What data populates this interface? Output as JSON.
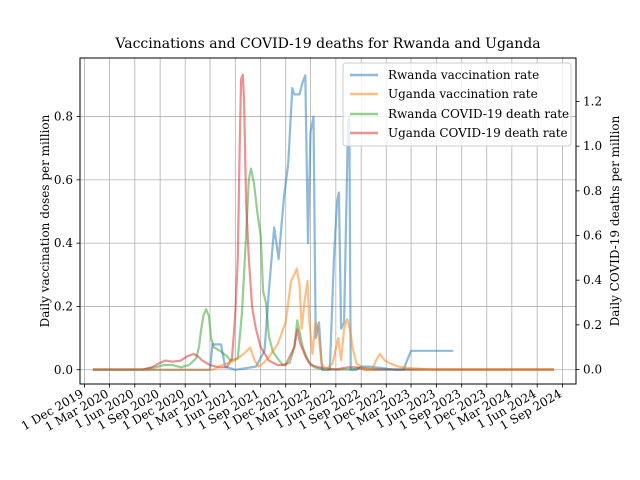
{
  "chart_data": {
    "type": "line",
    "title": "Vaccinations and COVID-19 deaths for Rwanda and Uganda",
    "ylabel_left": "Daily vaccination doses per million",
    "ylabel_right": "Daily COVID-19 deaths per million",
    "xlim": [
      "2019-11-15",
      "2024-10-20"
    ],
    "ylim_left": [
      -0.045,
      0.985
    ],
    "ylim_right": [
      -0.065,
      1.395
    ],
    "grid": true,
    "legend_position": "top-right",
    "x_ticks": [
      {
        "date": "2019-12-01",
        "label": "1 Dec 2019"
      },
      {
        "date": "2020-03-01",
        "label": "1 Mar 2020"
      },
      {
        "date": "2020-06-01",
        "label": "1 Jun 2020"
      },
      {
        "date": "2020-09-01",
        "label": "1 Sep 2020"
      },
      {
        "date": "2020-12-01",
        "label": "1 Dec 2020"
      },
      {
        "date": "2021-03-01",
        "label": "1 Mar 2021"
      },
      {
        "date": "2021-06-01",
        "label": "1 Jun 2021"
      },
      {
        "date": "2021-09-01",
        "label": "1 Sep 2021"
      },
      {
        "date": "2021-12-01",
        "label": "1 Dec 2021"
      },
      {
        "date": "2022-03-01",
        "label": "1 Mar 2022"
      },
      {
        "date": "2022-06-01",
        "label": "1 Jun 2022"
      },
      {
        "date": "2022-09-01",
        "label": "1 Sep 2022"
      },
      {
        "date": "2022-12-01",
        "label": "1 Dec 2022"
      },
      {
        "date": "2023-03-01",
        "label": "1 Mar 2023"
      },
      {
        "date": "2023-06-01",
        "label": "1 Jun 2023"
      },
      {
        "date": "2023-09-01",
        "label": "1 Sep 2023"
      },
      {
        "date": "2023-12-01",
        "label": "1 Dec 2023"
      },
      {
        "date": "2024-03-01",
        "label": "1 Mar 2024"
      },
      {
        "date": "2024-06-01",
        "label": "1 Jun 2024"
      },
      {
        "date": "2024-09-01",
        "label": "1 Sep 2024"
      }
    ],
    "y_ticks_left": [
      {
        "value": 0.0,
        "label": "0.0"
      },
      {
        "value": 0.2,
        "label": "0.2"
      },
      {
        "value": 0.4,
        "label": "0.4"
      },
      {
        "value": 0.6,
        "label": "0.6"
      },
      {
        "value": 0.8,
        "label": "0.8"
      }
    ],
    "y_ticks_right": [
      {
        "value": 0.0,
        "label": "0.0"
      },
      {
        "value": 0.2,
        "label": "0.2"
      },
      {
        "value": 0.4,
        "label": "0.4"
      },
      {
        "value": 0.6,
        "label": "0.6"
      },
      {
        "value": 0.8,
        "label": "0.8"
      },
      {
        "value": 1.0,
        "label": "1.0"
      },
      {
        "value": 1.2,
        "label": "1.2"
      }
    ],
    "series": [
      {
        "name": "Rwanda vaccination rate",
        "axis": "left",
        "color": "#1f77b4",
        "points": [
          [
            "2020-01-01",
            0.0
          ],
          [
            "2021-03-01",
            0.0
          ],
          [
            "2021-03-10",
            0.08
          ],
          [
            "2021-04-10",
            0.08
          ],
          [
            "2021-04-25",
            0.01
          ],
          [
            "2021-06-01",
            0.0
          ],
          [
            "2021-08-15",
            0.01
          ],
          [
            "2021-09-15",
            0.06
          ],
          [
            "2021-10-01",
            0.25
          ],
          [
            "2021-10-20",
            0.45
          ],
          [
            "2021-11-05",
            0.35
          ],
          [
            "2021-11-25",
            0.55
          ],
          [
            "2021-12-10",
            0.65
          ],
          [
            "2021-12-25",
            0.89
          ],
          [
            "2022-01-01",
            0.87
          ],
          [
            "2022-01-20",
            0.87
          ],
          [
            "2022-02-01",
            0.91
          ],
          [
            "2022-02-10",
            0.93
          ],
          [
            "2022-02-20",
            0.4
          ],
          [
            "2022-03-01",
            0.75
          ],
          [
            "2022-03-12",
            0.8
          ],
          [
            "2022-03-20",
            0.1
          ],
          [
            "2022-04-01",
            0.15
          ],
          [
            "2022-04-12",
            0.0
          ],
          [
            "2022-05-10",
            0.0
          ],
          [
            "2022-05-25",
            0.35
          ],
          [
            "2022-06-05",
            0.53
          ],
          [
            "2022-06-12",
            0.56
          ],
          [
            "2022-06-20",
            0.13
          ],
          [
            "2022-07-01",
            0.15
          ],
          [
            "2022-07-15",
            0.78
          ],
          [
            "2022-07-20",
            0.8
          ],
          [
            "2022-07-25",
            0.0
          ],
          [
            "2022-08-15",
            0.0
          ],
          [
            "2022-09-01",
            0.01
          ],
          [
            "2022-10-01",
            0.01
          ],
          [
            "2023-01-05",
            0.0
          ],
          [
            "2023-02-01",
            0.0
          ],
          [
            "2023-03-01",
            0.06
          ],
          [
            "2023-08-01",
            0.06
          ]
        ]
      },
      {
        "name": "Uganda vaccination rate",
        "axis": "left",
        "color": "#ff7f0e",
        "points": [
          [
            "2020-01-01",
            0.0
          ],
          [
            "2021-03-10",
            0.0
          ],
          [
            "2021-04-01",
            0.01
          ],
          [
            "2021-05-01",
            0.02
          ],
          [
            "2021-06-01",
            0.03
          ],
          [
            "2021-07-01",
            0.05
          ],
          [
            "2021-07-25",
            0.07
          ],
          [
            "2021-08-10",
            0.03
          ],
          [
            "2021-08-25",
            0.01
          ],
          [
            "2021-09-10",
            0.02
          ],
          [
            "2021-10-01",
            0.04
          ],
          [
            "2021-11-01",
            0.08
          ],
          [
            "2021-12-01",
            0.15
          ],
          [
            "2021-12-20",
            0.28
          ],
          [
            "2022-01-01",
            0.3
          ],
          [
            "2022-01-10",
            0.32
          ],
          [
            "2022-01-20",
            0.27
          ],
          [
            "2022-01-28",
            0.13
          ],
          [
            "2022-02-08",
            0.22
          ],
          [
            "2022-02-18",
            0.28
          ],
          [
            "2022-02-25",
            0.15
          ],
          [
            "2022-03-08",
            0.05
          ],
          [
            "2022-03-20",
            0.15
          ],
          [
            "2022-03-28",
            0.13
          ],
          [
            "2022-04-10",
            0.02
          ],
          [
            "2022-04-25",
            0.0
          ],
          [
            "2022-05-20",
            0.02
          ],
          [
            "2022-06-10",
            0.1
          ],
          [
            "2022-06-20",
            0.03
          ],
          [
            "2022-07-01",
            0.13
          ],
          [
            "2022-07-12",
            0.16
          ],
          [
            "2022-07-22",
            0.13
          ],
          [
            "2022-08-01",
            0.07
          ],
          [
            "2022-08-15",
            0.02
          ],
          [
            "2022-09-15",
            0.0
          ],
          [
            "2022-10-10",
            0.0
          ],
          [
            "2022-10-25",
            0.03
          ],
          [
            "2022-11-08",
            0.05
          ],
          [
            "2022-11-25",
            0.03
          ],
          [
            "2022-12-15",
            0.02
          ],
          [
            "2023-01-15",
            0.01
          ],
          [
            "2023-03-01",
            0.005
          ],
          [
            "2023-06-01",
            0.0
          ],
          [
            "2024-08-01",
            0.0
          ]
        ]
      },
      {
        "name": "Rwanda COVID-19 death rate",
        "axis": "right",
        "color": "#2ca02c",
        "points": [
          [
            "2020-01-01",
            0.0
          ],
          [
            "2020-07-01",
            0.0
          ],
          [
            "2020-08-15",
            0.01
          ],
          [
            "2020-09-15",
            0.02
          ],
          [
            "2020-10-15",
            0.02
          ],
          [
            "2020-11-15",
            0.01
          ],
          [
            "2020-12-15",
            0.02
          ],
          [
            "2021-01-10",
            0.05
          ],
          [
            "2021-01-20",
            0.1
          ],
          [
            "2021-01-28",
            0.18
          ],
          [
            "2021-02-05",
            0.24
          ],
          [
            "2021-02-15",
            0.27
          ],
          [
            "2021-02-25",
            0.24
          ],
          [
            "2021-03-05",
            0.14
          ],
          [
            "2021-03-15",
            0.1
          ],
          [
            "2021-04-10",
            0.08
          ],
          [
            "2021-05-01",
            0.06
          ],
          [
            "2021-05-15",
            0.04
          ],
          [
            "2021-06-10",
            0.05
          ],
          [
            "2021-06-25",
            0.25
          ],
          [
            "2021-07-10",
            0.6
          ],
          [
            "2021-07-20",
            0.85
          ],
          [
            "2021-07-28",
            0.9
          ],
          [
            "2021-08-08",
            0.83
          ],
          [
            "2021-08-20",
            0.7
          ],
          [
            "2021-09-01",
            0.6
          ],
          [
            "2021-09-10",
            0.35
          ],
          [
            "2021-09-20",
            0.3
          ],
          [
            "2021-10-01",
            0.15
          ],
          [
            "2021-10-15",
            0.08
          ],
          [
            "2021-11-01",
            0.05
          ],
          [
            "2021-11-20",
            0.02
          ],
          [
            "2021-12-15",
            0.03
          ],
          [
            "2022-01-01",
            0.1
          ],
          [
            "2022-01-12",
            0.22
          ],
          [
            "2022-01-22",
            0.16
          ],
          [
            "2022-02-01",
            0.1
          ],
          [
            "2022-02-20",
            0.04
          ],
          [
            "2022-03-15",
            0.01
          ],
          [
            "2022-04-15",
            0.0
          ],
          [
            "2022-08-01",
            0.0
          ],
          [
            "2022-09-01",
            0.01
          ],
          [
            "2022-10-15",
            0.0
          ],
          [
            "2024-08-01",
            0.0
          ]
        ]
      },
      {
        "name": "Uganda COVID-19 death rate",
        "axis": "right",
        "color": "#d62728",
        "points": [
          [
            "2020-01-01",
            0.0
          ],
          [
            "2020-07-01",
            0.0
          ],
          [
            "2020-08-01",
            0.01
          ],
          [
            "2020-09-01",
            0.03
          ],
          [
            "2020-09-20",
            0.04
          ],
          [
            "2020-10-15",
            0.035
          ],
          [
            "2020-11-15",
            0.04
          ],
          [
            "2020-12-10",
            0.06
          ],
          [
            "2021-01-01",
            0.07
          ],
          [
            "2021-01-15",
            0.06
          ],
          [
            "2021-02-01",
            0.04
          ],
          [
            "2021-03-01",
            0.02
          ],
          [
            "2021-04-01",
            0.01
          ],
          [
            "2021-05-01",
            0.01
          ],
          [
            "2021-05-20",
            0.05
          ],
          [
            "2021-06-01",
            0.25
          ],
          [
            "2021-06-10",
            0.5
          ],
          [
            "2021-06-17",
            1.0
          ],
          [
            "2021-06-22",
            1.3
          ],
          [
            "2021-06-28",
            1.32
          ],
          [
            "2021-07-03",
            1.2
          ],
          [
            "2021-07-10",
            0.75
          ],
          [
            "2021-07-20",
            0.5
          ],
          [
            "2021-08-01",
            0.28
          ],
          [
            "2021-08-15",
            0.18
          ],
          [
            "2021-09-01",
            0.1
          ],
          [
            "2021-10-01",
            0.04
          ],
          [
            "2021-11-01",
            0.02
          ],
          [
            "2021-12-01",
            0.02
          ],
          [
            "2022-01-01",
            0.1
          ],
          [
            "2022-01-12",
            0.18
          ],
          [
            "2022-01-22",
            0.12
          ],
          [
            "2022-02-10",
            0.06
          ],
          [
            "2022-03-01",
            0.02
          ],
          [
            "2022-04-01",
            0.01
          ],
          [
            "2022-06-01",
            0.0
          ],
          [
            "2022-07-15",
            0.01
          ],
          [
            "2022-08-15",
            0.01
          ],
          [
            "2022-09-15",
            0.0
          ],
          [
            "2024-08-01",
            0.0
          ]
        ]
      }
    ]
  }
}
